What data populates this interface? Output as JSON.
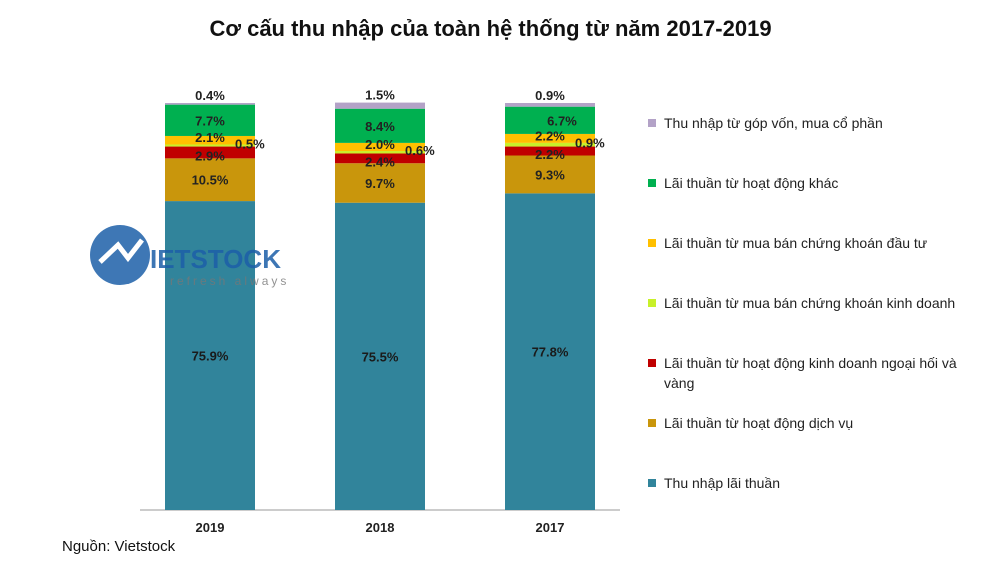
{
  "chart_data": {
    "type": "bar",
    "stacked": true,
    "title": "Cơ cấu thu nhập của toàn hệ thống từ năm 2017-2019",
    "categories": [
      "2019",
      "2018",
      "2017"
    ],
    "ylim": [
      0,
      100
    ],
    "series": [
      {
        "name": "Thu nhập lãi thuần",
        "color": "#31849B",
        "values": [
          75.9,
          75.5,
          77.8
        ],
        "labels": [
          "75.9%",
          "75.5%",
          "77.8%"
        ]
      },
      {
        "name": "Lãi thuần từ hoạt động dịch vụ",
        "color": "#C9960C",
        "values": [
          10.5,
          9.7,
          9.3
        ],
        "labels": [
          "10.5%",
          "9.7%",
          "9.3%"
        ]
      },
      {
        "name": "Lãi thuần từ hoạt động kinh doanh ngoại hối và vàng",
        "color": "#C00000",
        "values": [
          2.9,
          2.4,
          2.2
        ],
        "labels": [
          "2.9%",
          "2.4%",
          "2.2%"
        ]
      },
      {
        "name": "Lãi thuần từ mua bán chứng khoán kinh doanh",
        "color": "#C8F02A",
        "values": [
          0.5,
          0.6,
          0.9
        ],
        "labels": [
          "0.5%",
          "0.6%",
          "0.9%"
        ]
      },
      {
        "name": "Lãi thuần từ mua bán chứng khoán đầu tư",
        "color": "#FFC000",
        "values": [
          2.1,
          2.0,
          2.2
        ],
        "labels": [
          "2.1%",
          "2.0%",
          "2.2%"
        ]
      },
      {
        "name": "Lãi thuần từ hoạt động khác",
        "color": "#00B050",
        "values": [
          7.7,
          8.4,
          6.7
        ],
        "labels": [
          "7.7%",
          "8.4%",
          "6.7%"
        ]
      },
      {
        "name": "Thu nhập từ góp vốn, mua cổ phần",
        "color": "#B3A2C7",
        "values": [
          0.4,
          1.5,
          0.9
        ],
        "labels": [
          "0.4%",
          "1.5%",
          "0.9%"
        ]
      }
    ],
    "legend": "right"
  },
  "source": "Nguồn: Vietstock",
  "watermark": {
    "brand": "VIETSTOCK",
    "tagline": "refresh always"
  }
}
